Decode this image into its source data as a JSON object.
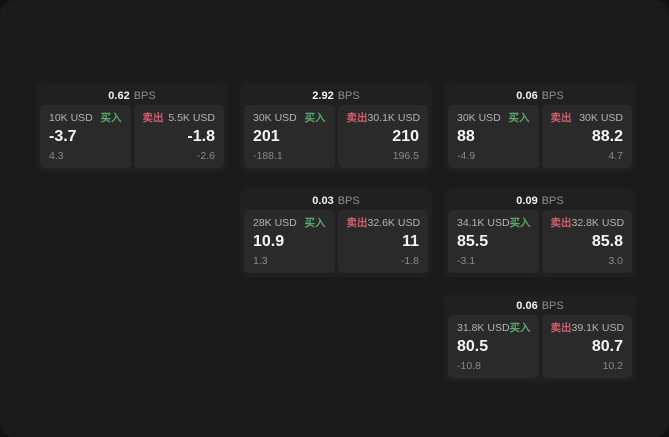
{
  "labels": {
    "bps_suffix": "BPS",
    "buy": "买入",
    "sell": "卖出"
  },
  "colors": {
    "background": "#101010",
    "panel": "#1b1b1b",
    "card": "#202020",
    "tile": "#2a2a2a",
    "buy_accent": "#58a86a",
    "sell_accent": "#cf5f6e",
    "value_text": "#f5f5f5",
    "muted_text": "#8a8a8a"
  },
  "cards": [
    {
      "bps": "0.62",
      "buy": {
        "size": "10K USD",
        "value": "-3.7",
        "delta": "4.3"
      },
      "sell": {
        "size": "5.5K USD",
        "value": "-1.8",
        "delta": "-2.6"
      }
    },
    {
      "bps": "2.92",
      "buy": {
        "size": "30K USD",
        "value": "201",
        "delta": "-188.1"
      },
      "sell": {
        "size": "30.1K USD",
        "value": "210",
        "delta": "196.5"
      }
    },
    {
      "bps": "0.06",
      "buy": {
        "size": "30K USD",
        "value": "88",
        "delta": "-4.9"
      },
      "sell": {
        "size": "30K USD",
        "value": "88.2",
        "delta": "4.7"
      }
    },
    {
      "bps": "0.03",
      "buy": {
        "size": "28K USD",
        "value": "10.9",
        "delta": "1.3"
      },
      "sell": {
        "size": "32.6K USD",
        "value": "11",
        "delta": "-1.8"
      }
    },
    {
      "bps": "0.09",
      "buy": {
        "size": "34.1K USD",
        "value": "85.5",
        "delta": "-3.1"
      },
      "sell": {
        "size": "32.8K USD",
        "value": "85.8",
        "delta": "3.0"
      }
    },
    {
      "bps": "0.06",
      "buy": {
        "size": "31.8K USD",
        "value": "80.5",
        "delta": "-10.8"
      },
      "sell": {
        "size": "39.1K USD",
        "value": "80.7",
        "delta": "10.2"
      }
    }
  ]
}
